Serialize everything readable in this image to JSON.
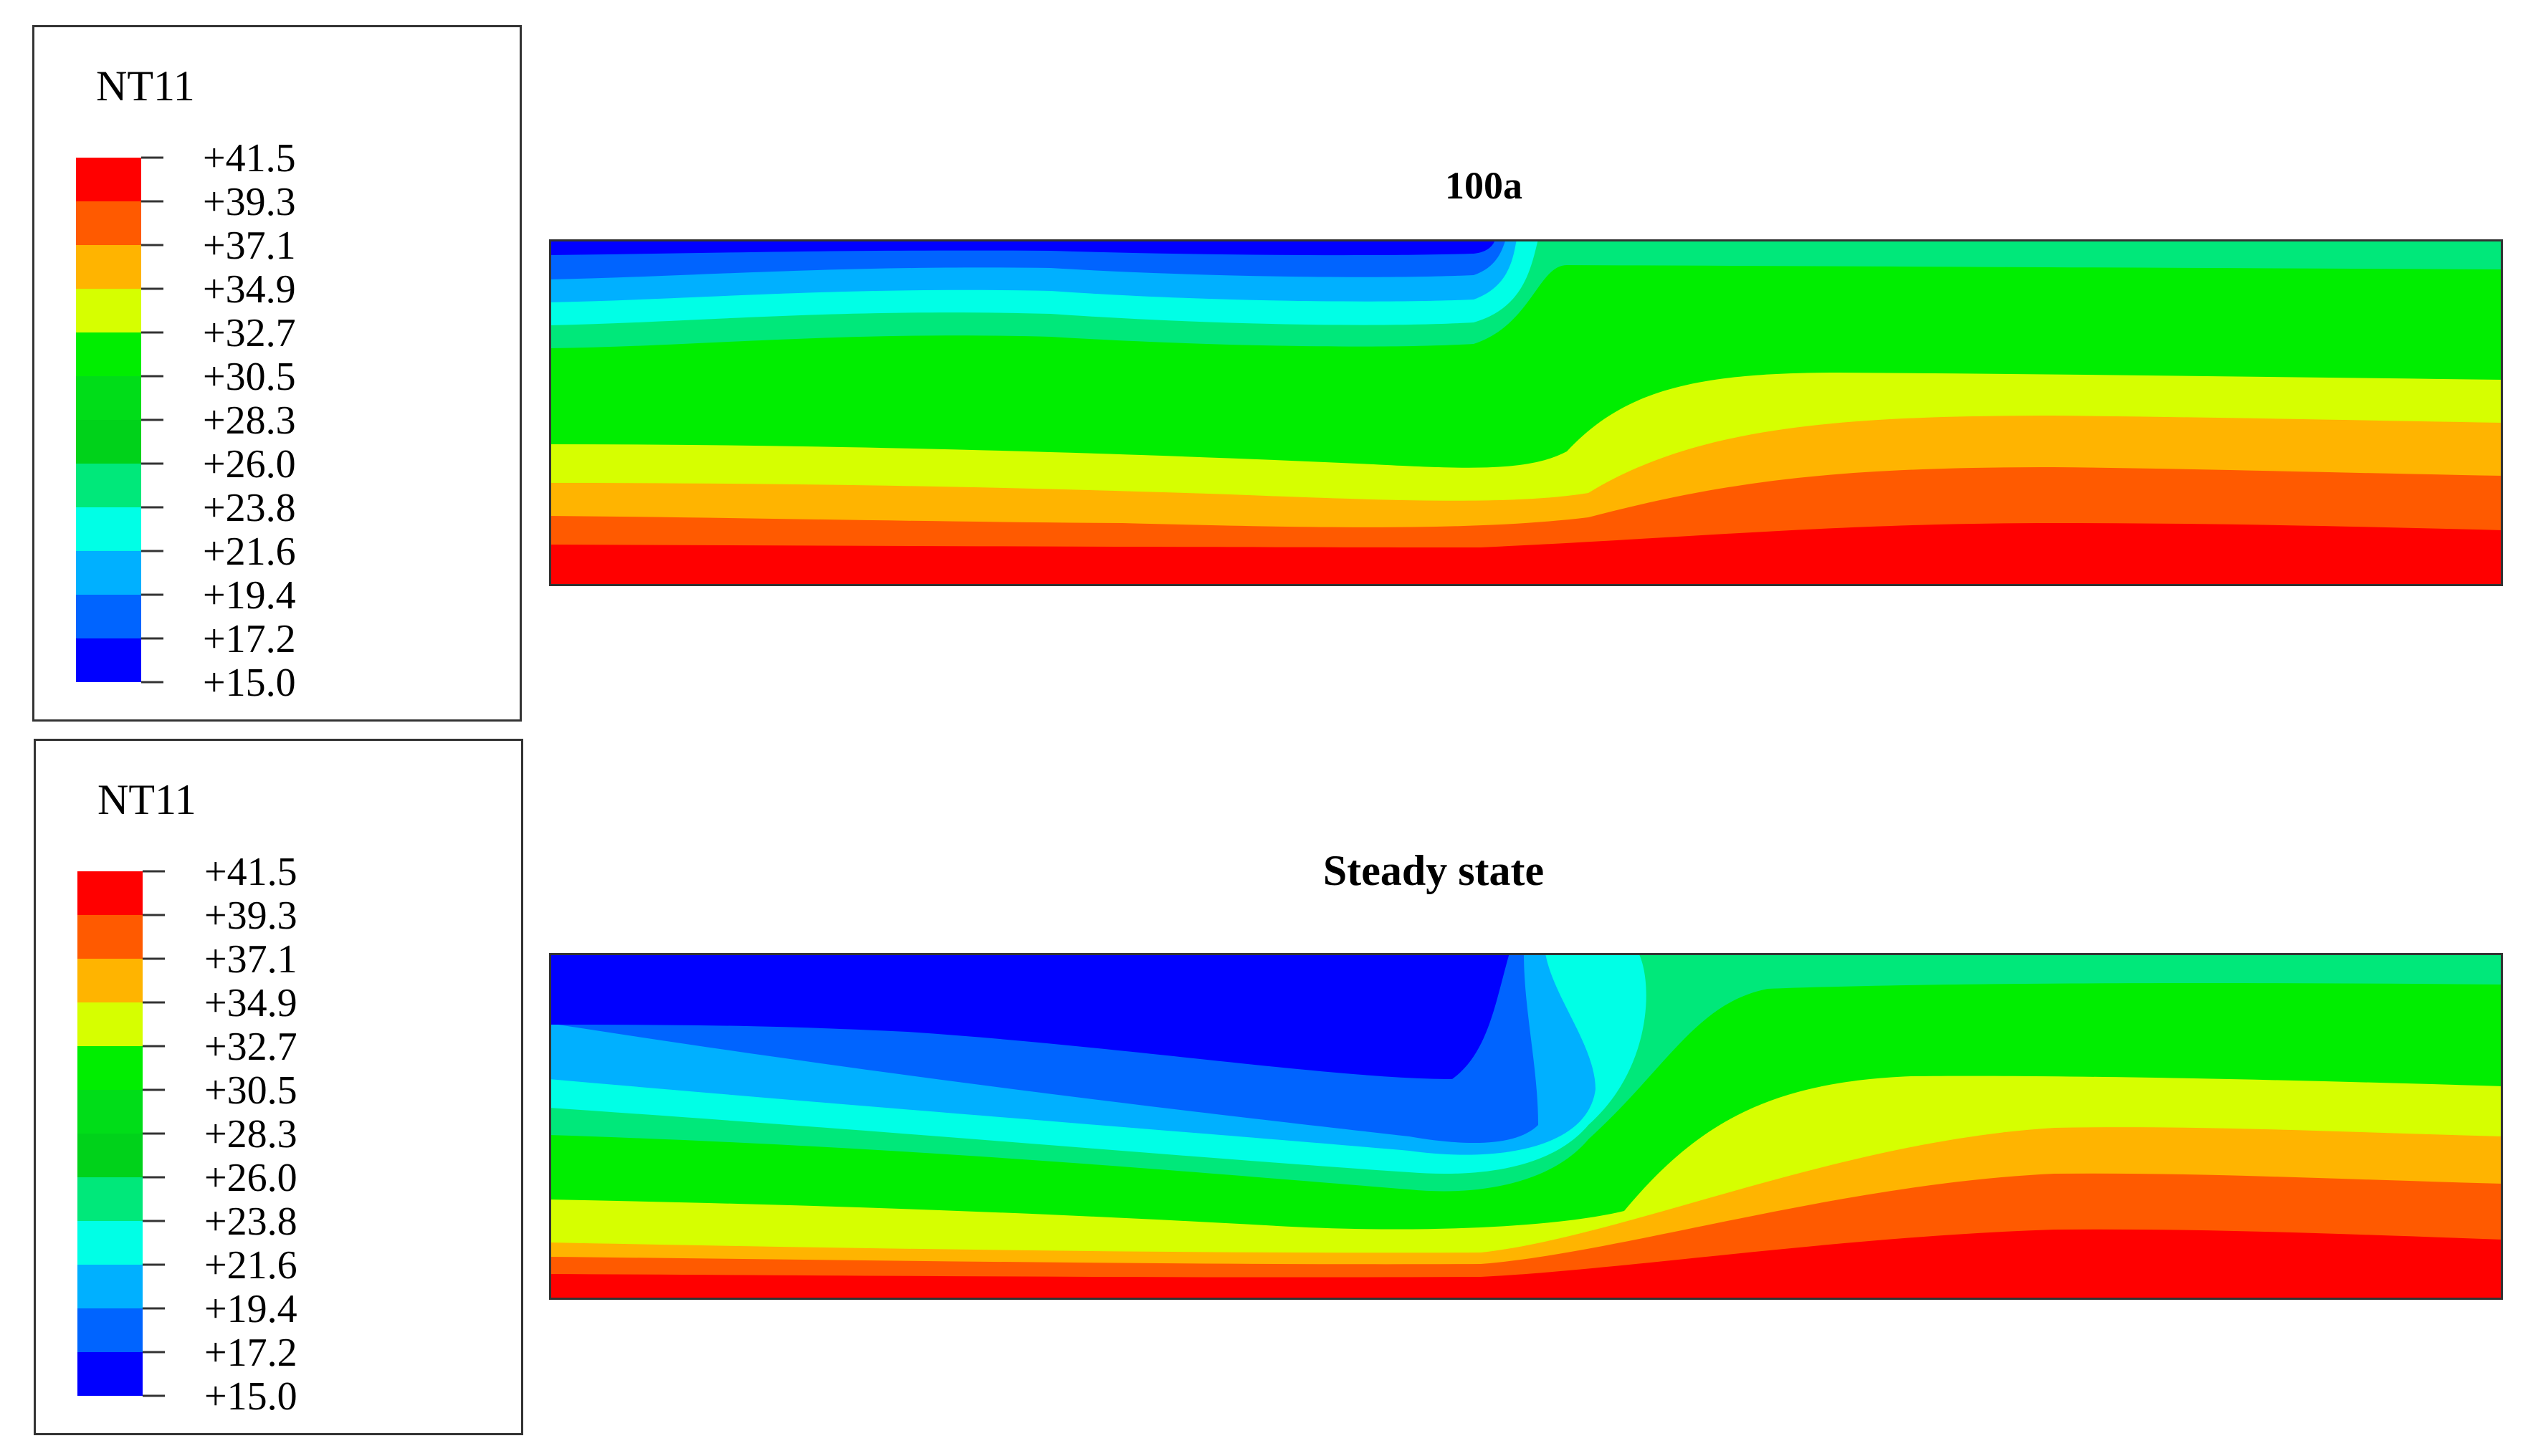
{
  "legends": [
    {
      "title": "NT11",
      "labels": [
        "+41.5",
        "+39.3",
        "+37.1",
        "+34.9",
        "+32.7",
        "+30.5",
        "+28.3",
        "+26.0",
        "+23.8",
        "+21.6",
        "+19.4",
        "+17.2",
        "+15.0"
      ]
    },
    {
      "title": "NT11",
      "labels": [
        "+41.5",
        "+39.3",
        "+37.1",
        "+34.9",
        "+32.7",
        "+30.5",
        "+28.3",
        "+26.0",
        "+23.8",
        "+21.6",
        "+19.4",
        "+17.2",
        "+15.0"
      ]
    }
  ],
  "colors": {
    "band_colors_high_to_low": [
      "#ff0000",
      "#ff5a00",
      "#ffb400",
      "#d6ff00",
      "#00ee00",
      "#00dd18",
      "#00d21a",
      "#00e87a",
      "#00ffe6",
      "#00b0ff",
      "#0064ff",
      "#0000ff"
    ]
  },
  "chart_data": [
    {
      "type": "heatmap",
      "title": "100a",
      "variable": "NT11",
      "colorbar_min": 15.0,
      "colorbar_max": 41.5,
      "band_count": 12,
      "notes_bands_top_to_bottom_left": [
        15.0,
        17.2,
        19.4,
        21.6,
        23.8,
        26.0,
        28.3,
        30.5,
        32.7,
        34.9,
        37.1,
        39.3,
        41.5
      ]
    },
    {
      "type": "heatmap",
      "title": "Steady state",
      "variable": "NT11",
      "colorbar_min": 15.0,
      "colorbar_max": 41.5,
      "band_count": 12
    }
  ]
}
